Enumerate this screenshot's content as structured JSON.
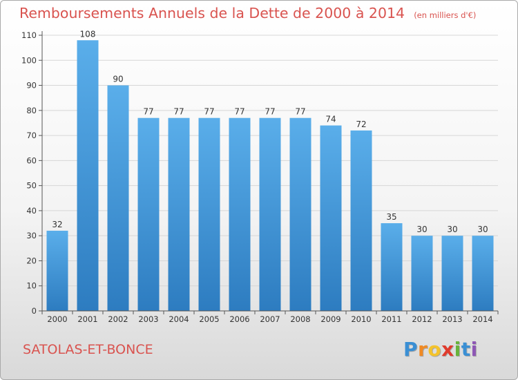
{
  "title": "Remboursements Annuels de la Dette de 2000 à 2014",
  "unit_note": "(en milliers d'€)",
  "commune": "SATOLAS-ET-BONCE",
  "logo": {
    "letters": [
      "P",
      "r",
      "o",
      "x",
      "i",
      "t",
      "i"
    ],
    "colors": [
      "#3a8fd4",
      "#f08a24",
      "#f4c32c",
      "#e03b2d",
      "#67b33a",
      "#3a8fd4",
      "#8e57b5"
    ]
  },
  "colors": {
    "bar_top": "#5aaeea",
    "bar_bottom": "#2d7cc0",
    "title": "#d9534f",
    "grid": "#d6d6d6",
    "axis": "#555555"
  },
  "chart_data": {
    "type": "bar",
    "categories": [
      "2000",
      "2001",
      "2002",
      "2003",
      "2004",
      "2005",
      "2006",
      "2007",
      "2008",
      "2009",
      "2010",
      "2011",
      "2012",
      "2013",
      "2014"
    ],
    "values": [
      32,
      108,
      90,
      77,
      77,
      77,
      77,
      77,
      77,
      74,
      72,
      35,
      30,
      30,
      30
    ],
    "title": "Remboursements Annuels de la Dette de 2000 à 2014",
    "xlabel": "",
    "ylabel": "",
    "ylim": [
      0,
      110
    ],
    "yticks": [
      0,
      10,
      20,
      30,
      40,
      50,
      60,
      70,
      80,
      90,
      100,
      110
    ],
    "grid": true,
    "data_labels": true
  }
}
